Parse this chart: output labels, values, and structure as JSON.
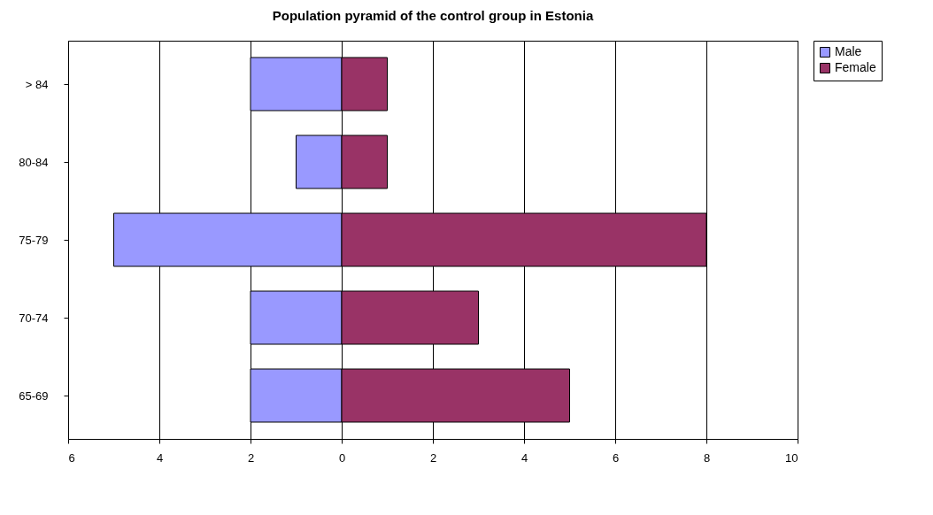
{
  "chart_data": {
    "type": "bar",
    "orientation": "horizontal",
    "title": "Population pyramid of the control group in Estonia",
    "categories": [
      "> 84",
      "80-84",
      "75-79",
      "70-74",
      "65-69"
    ],
    "series": [
      {
        "name": "Male",
        "color": "#9999ff",
        "values": [
          -2,
          -1,
          -5,
          -2,
          -2
        ]
      },
      {
        "name": "Female",
        "color": "#993366",
        "values": [
          1,
          1,
          8,
          3,
          5
        ]
      }
    ],
    "xlim": [
      -6,
      10
    ],
    "xticks": [
      {
        "value": -6,
        "label": "6"
      },
      {
        "value": -4,
        "label": "4"
      },
      {
        "value": -2,
        "label": "2"
      },
      0,
      2,
      4,
      6,
      8,
      10
    ],
    "grid": "x",
    "legend": "right",
    "stacked": true
  }
}
